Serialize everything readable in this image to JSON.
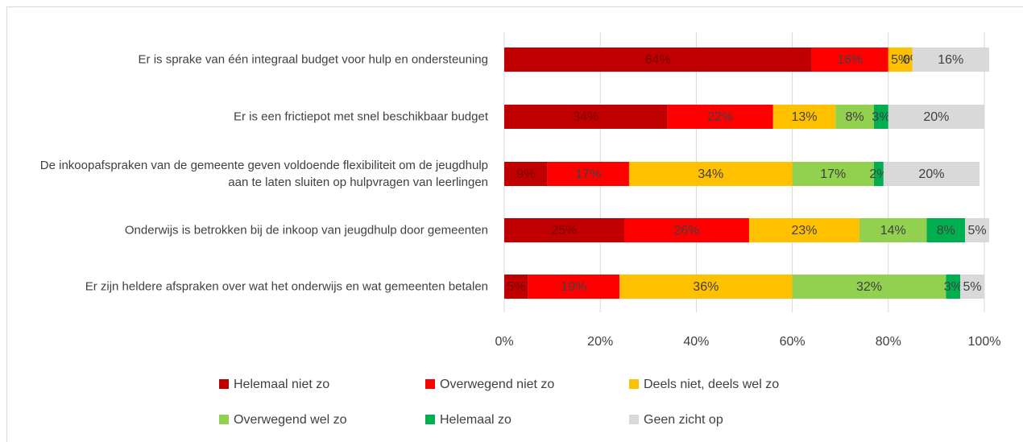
{
  "chart_data": {
    "type": "stacked-bar-horizontal",
    "categories": [
      "Er is sprake van één integraal budget voor hulp en ondersteuning",
      "Er is een frictiepot met snel beschikbaar budget",
      "De inkoopafspraken van de gemeente geven voldoende flexibiliteit om de jeugdhulp aan te laten sluiten op hulpvragen van leerlingen",
      "Onderwijs is betrokken bij de inkoop van jeugdhulp door gemeenten",
      "Er zijn heldere afspraken over wat het onderwijs en wat gemeenten betalen"
    ],
    "series": [
      {
        "name": "Helemaal niet zo",
        "color": "#c00000",
        "values": [
          64,
          34,
          9,
          25,
          5
        ],
        "value_labels": [
          "64%",
          "34%",
          "9%",
          "25%",
          "5%"
        ]
      },
      {
        "name": "Overwegend niet zo",
        "color": "#ff0000",
        "values": [
          16,
          22,
          17,
          26,
          19
        ],
        "value_labels": [
          "16%",
          "22%",
          "17%",
          "26%",
          "19%"
        ]
      },
      {
        "name": "Deels niet, deels wel zo",
        "color": "#ffc000",
        "values": [
          5,
          13,
          34,
          23,
          36
        ],
        "value_labels": [
          "5%",
          "13%",
          "34%",
          "23%",
          "36%"
        ]
      },
      {
        "name": "Overwegend wel zo",
        "color": "#92d050",
        "values": [
          0,
          8,
          17,
          14,
          32
        ],
        "value_labels": [
          "0%",
          "8%",
          "17%",
          "14%",
          "32%"
        ]
      },
      {
        "name": "Helemaal zo",
        "color": "#00b050",
        "values": [
          0,
          3,
          2,
          8,
          3
        ],
        "value_labels": [
          "0%",
          "3%",
          "2%",
          "8%",
          "3%"
        ]
      },
      {
        "name": "Geen zicht op",
        "color": "#d9d9d9",
        "values": [
          16,
          20,
          20,
          5,
          5
        ],
        "value_labels": [
          "16%",
          "20%",
          "20%",
          "5%",
          "5%"
        ]
      }
    ],
    "xlim": [
      0,
      100
    ],
    "xticks": [
      {
        "value": 0,
        "label": "0%"
      },
      {
        "value": 20,
        "label": "20%"
      },
      {
        "value": 40,
        "label": "40%"
      },
      {
        "value": 60,
        "label": "60%"
      },
      {
        "value": 80,
        "label": "80%"
      },
      {
        "value": 100,
        "label": "100%"
      }
    ],
    "grid": true,
    "legend": "bottom"
  }
}
